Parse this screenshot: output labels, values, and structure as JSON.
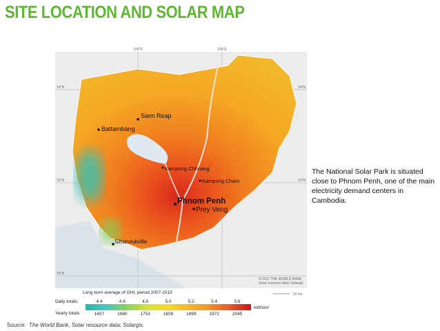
{
  "title": "SITE LOCATION AND SOLAR MAP",
  "map": {
    "grid_labels": {
      "lon_104": "104°E",
      "lon_106": "106°E",
      "lat_14_left": "14°N",
      "lat_14_right": "14°N",
      "lat_12_left": "12°N",
      "lat_12_right": "12°N",
      "lat_10_left": "10°N"
    },
    "cities": [
      {
        "name": "Siem Reap"
      },
      {
        "name": "Battambang"
      },
      {
        "name": "Kampong Chhnang"
      },
      {
        "name": "Kampong Cham"
      },
      {
        "name": "Phnom Penh"
      },
      {
        "name": "Prey Veng"
      },
      {
        "name": "Sihanoukville"
      }
    ],
    "credit_1": "© 2017 THE WORLD BANK",
    "credit_2": "Solar resource data: Solargis",
    "scale": "50 km"
  },
  "legend": {
    "title": "Long term average of GHI, period 2007-2015",
    "daily_label": "Daily totals:",
    "daily": [
      "4.4",
      "4.6",
      "4.8",
      "5.0",
      "5.2",
      "5.4",
      "5.6"
    ],
    "yearly_label": "Yearly totals:",
    "yearly": [
      "1607",
      "1680",
      "1753",
      "1826",
      "1899",
      "1972",
      "2045"
    ],
    "unit": "kWh/m²"
  },
  "note": "The National Solar Park is situated close to Phnom Penh, one of the main electricity demand centers in Cambodia.",
  "source_label": "Source:",
  "source": "The World Bank, Solar resource data: Solargis."
}
